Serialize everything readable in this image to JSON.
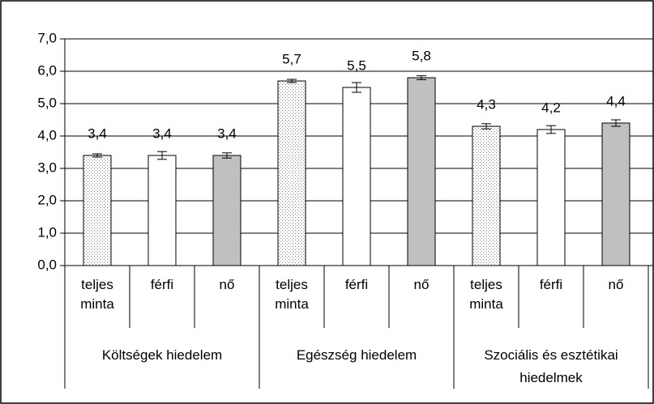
{
  "chart_data": {
    "type": "bar",
    "categories": [
      "teljes minta",
      "férfi",
      "nő",
      "teljes minta",
      "férfi",
      "nő",
      "teljes minta",
      "férfi",
      "nő"
    ],
    "groups": [
      "Költségek hiedelem",
      "Egészség hiedelem",
      "Szociális és esztétikai hiedelmek"
    ],
    "values": [
      3.4,
      3.4,
      3.4,
      5.7,
      5.5,
      5.8,
      4.3,
      4.2,
      4.4
    ],
    "value_labels": [
      "3,4",
      "3,4",
      "3,4",
      "5,7",
      "5,5",
      "5,8",
      "4,3",
      "4,2",
      "4,4"
    ],
    "errors": [
      0.05,
      0.12,
      0.08,
      0.05,
      0.15,
      0.06,
      0.08,
      0.12,
      0.1
    ],
    "fills": [
      "dotted",
      "#ffffff",
      "#c0c0c0",
      "dotted",
      "#ffffff",
      "#c0c0c0",
      "dotted",
      "#ffffff",
      "#c0c0c0"
    ],
    "ylim": [
      0,
      7
    ],
    "yticks": [
      {
        "value": 0,
        "label": "0,0"
      },
      {
        "value": 1,
        "label": "1,0"
      },
      {
        "value": 2,
        "label": "2,0"
      },
      {
        "value": 3,
        "label": "3,0"
      },
      {
        "value": 4,
        "label": "4,0"
      },
      {
        "value": 5,
        "label": "5,0"
      },
      {
        "value": 6,
        "label": "6,0"
      },
      {
        "value": 7,
        "label": "7,0"
      }
    ],
    "grid": true
  }
}
